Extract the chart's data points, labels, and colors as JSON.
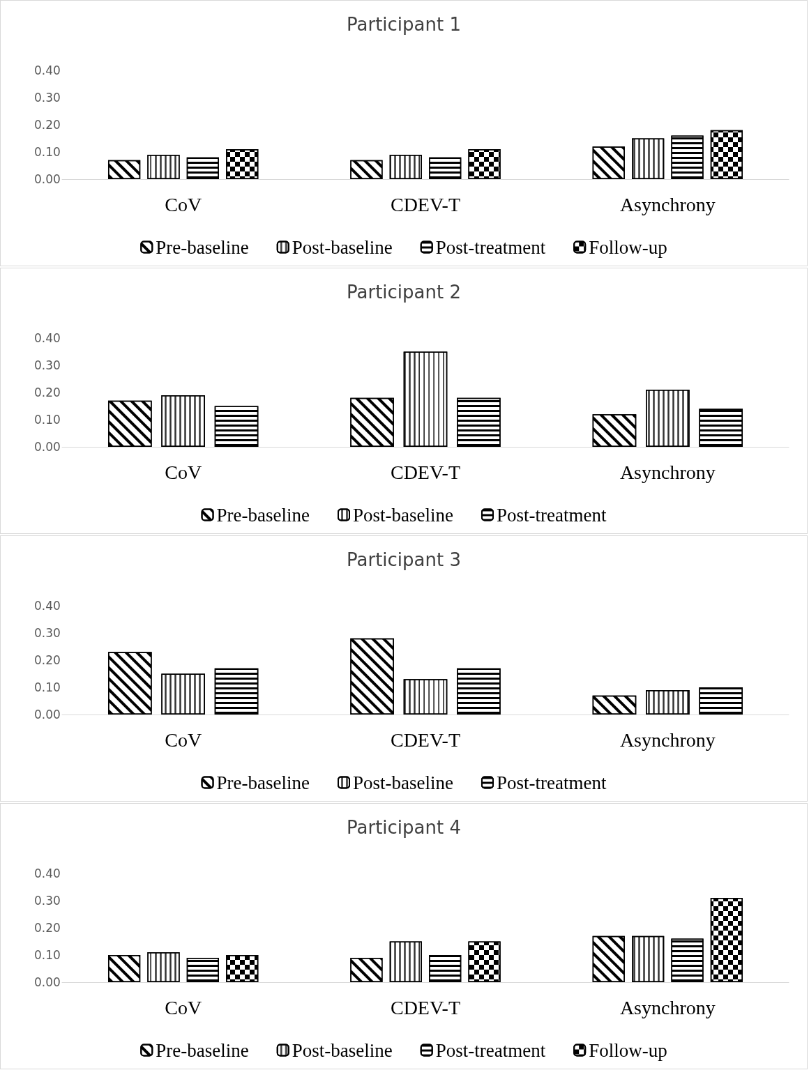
{
  "chart_data": [
    {
      "type": "bar",
      "title": "Participant 1",
      "categories": [
        "CoV",
        "CDEV-T",
        "Asynchrony"
      ],
      "series": [
        {
          "name": "Pre-baseline",
          "color": "#000000",
          "values": [
            0.07,
            0.07,
            0.12
          ]
        },
        {
          "name": "Post-baseline",
          "color": "#000000",
          "values": [
            0.09,
            0.09,
            0.15
          ]
        },
        {
          "name": "Post-treatment",
          "color": "#000000",
          "values": [
            0.08,
            0.08,
            0.16
          ]
        },
        {
          "name": "Follow-up",
          "color": "#000000",
          "values": [
            0.11,
            0.11,
            0.18
          ]
        }
      ],
      "ylim": [
        0,
        0.4
      ],
      "yticks": [
        {
          "value": 0,
          "label": "0.00"
        },
        {
          "value": 0.1,
          "label": "0.10"
        },
        {
          "value": 0.2,
          "label": "0.20"
        },
        {
          "value": 0.3,
          "label": "0.30"
        },
        {
          "value": 0.4,
          "label": "0.40"
        }
      ],
      "grid": false,
      "legend": "bottom"
    },
    {
      "type": "bar",
      "title": "Participant 2",
      "categories": [
        "CoV",
        "CDEV-T",
        "Asynchrony"
      ],
      "series": [
        {
          "name": "Pre-baseline",
          "color": "#000000",
          "values": [
            0.17,
            0.18,
            0.12
          ]
        },
        {
          "name": "Post-baseline",
          "color": "#000000",
          "values": [
            0.19,
            0.35,
            0.21
          ]
        },
        {
          "name": "Post-treatment",
          "color": "#000000",
          "values": [
            0.15,
            0.18,
            0.14
          ]
        }
      ],
      "ylim": [
        0,
        0.4
      ],
      "yticks": [
        {
          "value": 0,
          "label": "0.00"
        },
        {
          "value": 0.1,
          "label": "0.10"
        },
        {
          "value": 0.2,
          "label": "0.20"
        },
        {
          "value": 0.3,
          "label": "0.30"
        },
        {
          "value": 0.4,
          "label": "0.40"
        }
      ],
      "grid": false,
      "legend": "bottom"
    },
    {
      "type": "bar",
      "title": "Participant 3",
      "categories": [
        "CoV",
        "CDEV-T",
        "Asynchrony"
      ],
      "series": [
        {
          "name": "Pre-baseline",
          "color": "#000000",
          "values": [
            0.23,
            0.28,
            0.07
          ]
        },
        {
          "name": "Post-baseline",
          "color": "#000000",
          "values": [
            0.15,
            0.13,
            0.09
          ]
        },
        {
          "name": "Post-treatment",
          "color": "#000000",
          "values": [
            0.17,
            0.17,
            0.1
          ]
        }
      ],
      "ylim": [
        0,
        0.4
      ],
      "yticks": [
        {
          "value": 0,
          "label": "0.00"
        },
        {
          "value": 0.1,
          "label": "0.10"
        },
        {
          "value": 0.2,
          "label": "0.20"
        },
        {
          "value": 0.3,
          "label": "0.30"
        },
        {
          "value": 0.4,
          "label": "0.40"
        }
      ],
      "grid": false,
      "legend": "bottom"
    },
    {
      "type": "bar",
      "title": "Participant 4",
      "categories": [
        "CoV",
        "CDEV-T",
        "Asynchrony"
      ],
      "series": [
        {
          "name": "Pre-baseline",
          "color": "#000000",
          "values": [
            0.1,
            0.09,
            0.17
          ]
        },
        {
          "name": "Post-baseline",
          "color": "#000000",
          "values": [
            0.11,
            0.15,
            0.17
          ]
        },
        {
          "name": "Post-treatment",
          "color": "#000000",
          "values": [
            0.09,
            0.1,
            0.16
          ]
        },
        {
          "name": "Follow-up",
          "color": "#000000",
          "values": [
            0.1,
            0.15,
            0.31
          ]
        }
      ],
      "ylim": [
        0,
        0.4
      ],
      "yticks": [
        {
          "value": 0,
          "label": "0.00"
        },
        {
          "value": 0.1,
          "label": "0.10"
        },
        {
          "value": 0.2,
          "label": "0.20"
        },
        {
          "value": 0.3,
          "label": "0.30"
        },
        {
          "value": 0.4,
          "label": "0.40"
        }
      ],
      "grid": false,
      "legend": "bottom"
    }
  ]
}
